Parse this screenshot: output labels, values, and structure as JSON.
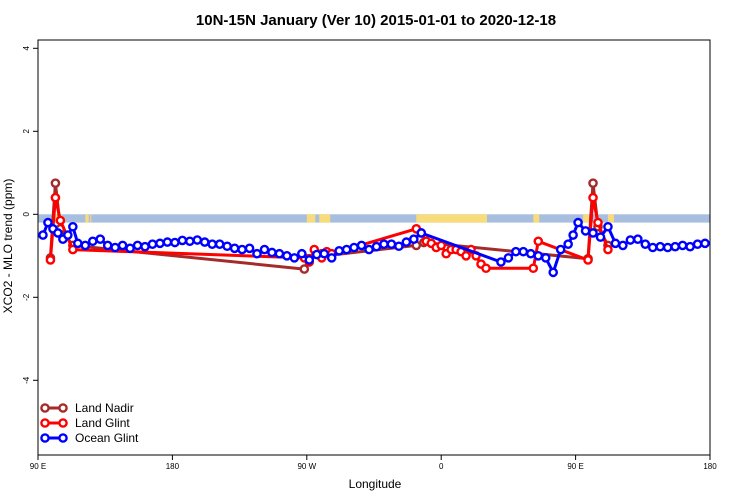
{
  "chart_data": {
    "type": "line",
    "title": "10N-15N January (Ver 10)   2015-01-01 to 2020-12-18",
    "xlabel": "Longitude",
    "ylabel": "XCO2 - MLO trend (ppm)",
    "xlim": [
      -90,
      180
    ],
    "ylim": [
      -5.8,
      4.2
    ],
    "x_ticks": [
      {
        "value": -90,
        "label": "90 E"
      },
      {
        "value": -36,
        "label": "180"
      },
      {
        "value": 18,
        "label": "90 W"
      },
      {
        "value": 72,
        "label": "0"
      },
      {
        "value": 126,
        "label": "90 E"
      },
      {
        "value": 180,
        "label": "180"
      }
    ],
    "y_ticks": [
      {
        "value": 4,
        "label": "4"
      },
      {
        "value": 2,
        "label": "2"
      },
      {
        "value": 0,
        "label": "0"
      },
      {
        "value": -2,
        "label": "-2"
      },
      {
        "value": -4,
        "label": "-4"
      }
    ],
    "land_band": {
      "ocean_color": "#a7bedf",
      "land_color": "#f8dc7c",
      "y_range": [
        -0.2,
        0
      ],
      "land_segments": [
        [
          -83,
          -81
        ],
        [
          -71,
          -70
        ],
        [
          -69,
          -69
        ],
        [
          18,
          21
        ],
        [
          23,
          27
        ],
        [
          62,
          90
        ],
        [
          109,
          111
        ],
        [
          129,
          131
        ],
        [
          139,
          141
        ]
      ]
    },
    "series": [
      {
        "name": "Land Nadir",
        "color": "#a52a2a",
        "x": [
          -85,
          -83,
          -81,
          -76,
          17,
          19,
          24,
          28,
          62,
          65,
          131,
          133,
          135,
          139
        ],
        "y": [
          -1.05,
          0.75,
          -0.35,
          -0.75,
          -1.32,
          -1.07,
          -0.95,
          -0.98,
          -0.75,
          -0.68,
          -1.07,
          0.75,
          -0.3,
          -0.75
        ]
      },
      {
        "name": "Land Glint",
        "color": "#ff0000",
        "x": [
          -85,
          -83,
          -81,
          -76,
          17,
          19,
          21,
          24,
          26,
          28,
          62,
          64,
          66,
          68,
          70,
          72,
          74,
          76,
          78,
          80,
          82,
          84,
          86,
          88,
          90,
          109,
          111,
          131,
          133,
          135,
          139
        ],
        "y": [
          -1.1,
          0.4,
          -0.15,
          -0.85,
          -1.05,
          -1.15,
          -0.85,
          -1.05,
          -0.9,
          -0.95,
          -0.35,
          -0.45,
          -0.65,
          -0.7,
          -0.8,
          -0.75,
          -0.95,
          -0.85,
          -0.85,
          -0.9,
          -1.0,
          -0.85,
          -1.0,
          -1.2,
          -1.3,
          -1.3,
          -0.65,
          -1.1,
          0.4,
          -0.2,
          -0.85
        ]
      },
      {
        "name": "Ocean Glint",
        "color": "#0000ff",
        "x": [
          -88,
          -86,
          -84,
          -82,
          -80,
          -78,
          -76,
          -74,
          -71,
          -68,
          -65,
          -62,
          -59,
          -56,
          -53,
          -50,
          -47,
          -44,
          -41,
          -38,
          -35,
          -32,
          -29,
          -26,
          -23,
          -20,
          -17,
          -14,
          -11,
          -8,
          -5,
          -2,
          1,
          4,
          7,
          10,
          13,
          16,
          19,
          22,
          25,
          28,
          31,
          34,
          37,
          40,
          43,
          46,
          49,
          52,
          55,
          58,
          61,
          64,
          96,
          99,
          102,
          105,
          108,
          111,
          114,
          117,
          120,
          123,
          125,
          127,
          130,
          133,
          136,
          139,
          142,
          145,
          148,
          151,
          154,
          157,
          160,
          163,
          166,
          169,
          172,
          175,
          178
        ],
        "y": [
          -0.5,
          -0.2,
          -0.35,
          -0.45,
          -0.6,
          -0.5,
          -0.3,
          -0.7,
          -0.75,
          -0.65,
          -0.6,
          -0.75,
          -0.8,
          -0.75,
          -0.82,
          -0.75,
          -0.78,
          -0.72,
          -0.7,
          -0.67,
          -0.68,
          -0.63,
          -0.65,
          -0.62,
          -0.67,
          -0.72,
          -0.72,
          -0.77,
          -0.82,
          -0.85,
          -0.82,
          -0.95,
          -0.85,
          -0.92,
          -0.95,
          -1.0,
          -1.05,
          -0.95,
          -1.1,
          -0.97,
          -0.95,
          -1.05,
          -0.88,
          -0.85,
          -0.8,
          -0.75,
          -0.85,
          -0.78,
          -0.72,
          -0.72,
          -0.77,
          -0.67,
          -0.6,
          -0.45,
          -1.15,
          -1.05,
          -0.9,
          -0.9,
          -0.95,
          -1.0,
          -1.05,
          -1.4,
          -0.85,
          -0.72,
          -0.5,
          -0.2,
          -0.4,
          -0.45,
          -0.55,
          -0.3,
          -0.7,
          -0.75,
          -0.62,
          -0.6,
          -0.72,
          -0.8,
          -0.78,
          -0.8,
          -0.78,
          -0.75,
          -0.78,
          -0.72,
          -0.7
        ]
      }
    ],
    "legend": {
      "position": "bottom-left",
      "entries": [
        "Land Nadir",
        "Land Glint",
        "Ocean Glint"
      ]
    }
  }
}
